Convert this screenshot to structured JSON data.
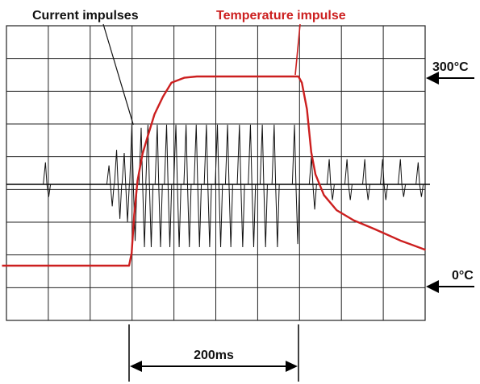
{
  "annotations": {
    "current_label": "Current impulses",
    "temperature_label": "Temperature impulse",
    "temp_high_label": "300°C",
    "temp_low_label": "0°C",
    "time_span_label": "200ms"
  },
  "colors": {
    "temperature": "#cc1f1f",
    "current": "#111111",
    "grid": "#222222"
  },
  "chart_data": {
    "type": "line",
    "grid": true,
    "xlabel": "",
    "ylabel": "",
    "time_scale_ms": 200,
    "series": [
      {
        "name": "Temperature impulse",
        "unit": "°C",
        "x_ms": [
          0,
          150,
          153,
          156,
          160,
          166,
          172,
          180,
          190,
          200,
          215,
          230,
          260,
          300,
          350,
          354,
          360,
          365,
          370,
          380,
          395,
          415,
          440,
          470,
          500
        ],
        "y": [
          0,
          0,
          20,
          80,
          135,
          178,
          205,
          240,
          268,
          290,
          298,
          300,
          300,
          300,
          300,
          290,
          248,
          180,
          145,
          112,
          88,
          72,
          58,
          40,
          25
        ]
      },
      {
        "name": "Current impulses",
        "unit": "relative",
        "pulse_times_ms": [
          53,
          128,
          137,
          146,
          155,
          166,
          174,
          185,
          196,
          207,
          219,
          231,
          243,
          256,
          268,
          282,
          295,
          309,
          323,
          347,
          367,
          388,
          409,
          430,
          451,
          472,
          493
        ],
        "pulse_peaks": [
          0.35,
          0.3,
          0.55,
          0.5,
          0.95,
          0.9,
          0.95,
          0.95,
          0.95,
          0.95,
          0.95,
          0.95,
          0.95,
          0.95,
          0.95,
          0.95,
          0.95,
          0.95,
          0.95,
          0.95,
          0.45,
          0.4,
          0.4,
          0.4,
          0.4,
          0.4,
          0.35
        ],
        "pulse_troughs": [
          -0.2,
          -0.35,
          -0.55,
          -0.6,
          -0.9,
          -1.0,
          -1.0,
          -1.0,
          -1.0,
          -1.0,
          -1.0,
          -1.0,
          -1.0,
          -1.0,
          -1.0,
          -1.0,
          -1.0,
          -1.0,
          -1.0,
          -0.95,
          -0.4,
          -0.25,
          -0.25,
          -0.25,
          -0.25,
          -0.2,
          -0.2
        ]
      }
    ]
  }
}
